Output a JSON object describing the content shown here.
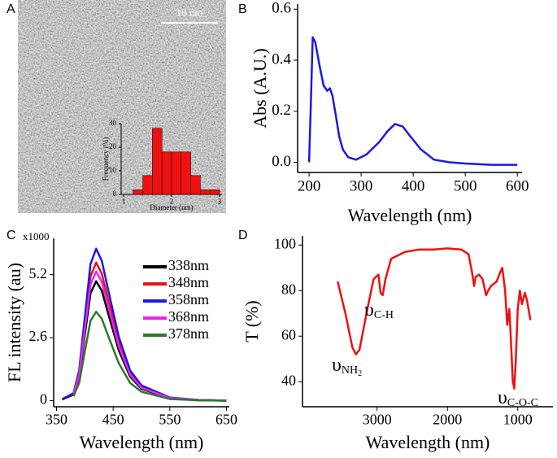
{
  "chart_data": [
    {
      "type": "histogram",
      "panel": "A",
      "annotation": "10 nm",
      "xlabel": "Diameter (nm)",
      "ylabel": "Frequency (%)",
      "bins": [
        1.2,
        1.4,
        1.6,
        1.8,
        2.0,
        2.2,
        2.4,
        2.6,
        2.8,
        3.0
      ],
      "values": [
        2,
        8,
        28,
        18,
        18,
        18,
        8,
        2,
        2
      ],
      "color": "#ee1111",
      "xlim": [
        0.95,
        3.05
      ],
      "xticks": [
        1,
        2,
        3
      ],
      "ylim": [
        0,
        30
      ],
      "yticks": [
        0,
        10,
        20,
        30
      ]
    },
    {
      "type": "line",
      "panel": "B",
      "xlabel": "Wavelength (nm)",
      "ylabel": "Abs (A.U.)",
      "x": [
        200,
        203,
        207,
        212,
        220,
        228,
        235,
        240,
        245,
        250,
        258,
        265,
        275,
        290,
        310,
        335,
        350,
        365,
        380,
        395,
        415,
        440,
        470,
        500,
        550,
        600
      ],
      "values": [
        0.0,
        0.2,
        0.49,
        0.47,
        0.38,
        0.3,
        0.28,
        0.29,
        0.26,
        0.2,
        0.1,
        0.05,
        0.02,
        0.01,
        0.03,
        0.08,
        0.12,
        0.15,
        0.14,
        0.1,
        0.05,
        0.01,
        0.0,
        -0.005,
        -0.01,
        -0.01
      ],
      "color": "#1a1ae6",
      "xlim": [
        178,
        609
      ],
      "xticks": [
        200,
        300,
        400,
        500,
        600
      ],
      "ylim": [
        -0.04,
        0.62
      ],
      "yticks": [
        {
          "value": 0,
          "label": "0.0"
        },
        0.2,
        0.4,
        0.6
      ]
    },
    {
      "type": "line",
      "panel": "C",
      "annotation": "x1000",
      "xlabel": "Wavelength (nm)",
      "ylabel": "FL intensity (au)",
      "x": [
        360,
        380,
        390,
        400,
        410,
        420,
        430,
        440,
        460,
        480,
        500,
        550,
        600,
        650
      ],
      "series": [
        {
          "name": "338nm",
          "color": "#000000",
          "values": [
            0.05,
            0.25,
            0.99,
            2.71,
            4.44,
            4.93,
            4.54,
            3.7,
            2.07,
            0.99,
            0.49,
            0.1,
            0.02,
            0
          ]
        },
        {
          "name": "348nm",
          "color": "#ee1111",
          "values": [
            0.06,
            0.29,
            1.14,
            3.14,
            5.13,
            5.7,
            5.24,
            4.28,
            2.39,
            1.14,
            0.57,
            0.11,
            0.03,
            0
          ]
        },
        {
          "name": "358nm",
          "color": "#1a1ae6",
          "values": [
            0.06,
            0.31,
            1.25,
            3.45,
            5.64,
            6.27,
            5.77,
            4.7,
            2.63,
            1.25,
            0.63,
            0.13,
            0.03,
            0
          ]
        },
        {
          "name": "368nm",
          "color": "#ee22ee",
          "values": [
            null,
            0.27,
            1.07,
            2.93,
            4.8,
            5.33,
            4.9,
            4.0,
            2.24,
            1.07,
            0.53,
            0.11,
            0.03,
            0
          ]
        },
        {
          "name": "378nm",
          "color": "#2a7a2a",
          "values": [
            null,
            0.18,
            0.73,
            2.02,
            3.3,
            3.67,
            3.38,
            2.75,
            1.54,
            0.73,
            0.37,
            0.07,
            0.02,
            0
          ]
        }
      ],
      "xlim": [
        345,
        655
      ],
      "xticks": [
        350,
        450,
        550,
        650
      ],
      "ylim": [
        -0.25,
        6.7
      ],
      "yticks": [
        0,
        2.6,
        5.2
      ]
    },
    {
      "type": "line",
      "panel": "D",
      "xlabel": "Wavelength (nm)",
      "ylabel": "T (%)",
      "x": [
        3560,
        3450,
        3350,
        3300,
        3250,
        3150,
        3050,
        2980,
        2950,
        2920,
        2880,
        2800,
        2600,
        2400,
        2200,
        2000,
        1800,
        1700,
        1650,
        1620,
        1600,
        1550,
        1500,
        1450,
        1420,
        1380,
        1300,
        1250,
        1220,
        1180,
        1150,
        1120,
        1100,
        1070,
        1050,
        1030,
        1000,
        970,
        940,
        900,
        870,
        820
      ],
      "values": [
        84,
        70,
        55,
        52,
        54,
        70,
        85,
        87,
        79,
        78,
        85,
        94,
        97,
        98,
        98,
        98.5,
        98,
        96,
        88,
        82,
        86,
        87,
        85,
        78,
        80,
        82,
        84,
        88,
        90,
        80,
        65,
        72,
        60,
        40,
        37,
        48,
        72,
        80,
        74,
        79,
        76,
        67
      ],
      "color": "#ee1111",
      "annotations": [
        {
          "symbol": "υ",
          "subscript": "NH",
          "subsubscript": "2"
        },
        {
          "symbol": "υ",
          "subscript": "C-H"
        },
        {
          "symbol": "υ",
          "subscript": "C-O-C"
        }
      ],
      "xlim": [
        4060,
        500
      ],
      "xticks": [
        3000,
        2000,
        1000
      ],
      "ylim": [
        29,
        104
      ],
      "yticks": [
        40,
        60,
        80,
        100
      ]
    }
  ]
}
